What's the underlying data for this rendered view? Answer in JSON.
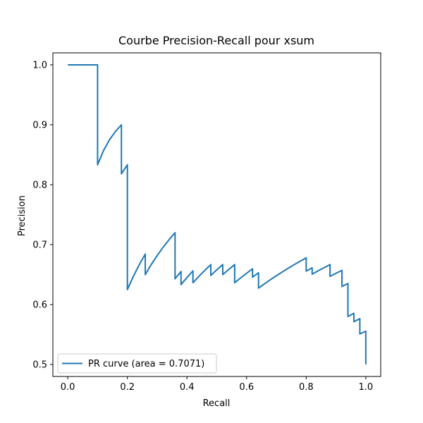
{
  "chart_data": {
    "type": "line",
    "title": "Courbe Precision-Recall pour xsum",
    "xlabel": "Recall",
    "ylabel": "Precision",
    "xlim": [
      -0.05,
      1.05
    ],
    "ylim": [
      0.48,
      1.02
    ],
    "xticks": [
      0.0,
      0.2,
      0.4,
      0.6,
      0.8,
      1.0
    ],
    "xtick_labels": [
      "0.0",
      "0.2",
      "0.4",
      "0.6",
      "0.8",
      "1.0"
    ],
    "yticks": [
      0.5,
      0.6,
      0.7,
      0.8,
      0.9,
      1.0
    ],
    "ytick_labels": [
      "0.5",
      "0.6",
      "0.7",
      "0.8",
      "0.9",
      "1.0"
    ],
    "grid": false,
    "legend_position": "lower-left",
    "colors": {
      "series": "#1f77b4"
    },
    "series": [
      {
        "name": "PR curve (area = 0.7071)",
        "x": [
          0.0,
          0.1,
          0.1,
          0.12,
          0.14,
          0.16,
          0.18,
          0.18,
          0.2,
          0.2,
          0.22,
          0.24,
          0.26,
          0.26,
          0.28,
          0.3,
          0.32,
          0.34,
          0.36,
          0.36,
          0.38,
          0.38,
          0.4,
          0.42,
          0.42,
          0.44,
          0.46,
          0.48,
          0.48,
          0.5,
          0.52,
          0.52,
          0.54,
          0.56,
          0.56,
          0.58,
          0.6,
          0.62,
          0.62,
          0.64,
          0.64,
          0.66,
          0.68,
          0.7,
          0.72,
          0.74,
          0.76,
          0.78,
          0.8,
          0.8,
          0.82,
          0.82,
          0.84,
          0.86,
          0.88,
          0.88,
          0.9,
          0.92,
          0.92,
          0.94,
          0.94,
          0.96,
          0.96,
          0.98,
          0.98,
          1.0,
          1.0
        ],
        "y": [
          1.0,
          1.0,
          0.8333,
          0.8571,
          0.875,
          0.8889,
          0.9,
          0.8182,
          0.8333,
          0.625,
          0.6471,
          0.6667,
          0.6842,
          0.65,
          0.6667,
          0.6818,
          0.6957,
          0.7083,
          0.72,
          0.6429,
          0.6552,
          0.6333,
          0.6452,
          0.6563,
          0.6364,
          0.6471,
          0.6571,
          0.6667,
          0.6486,
          0.6579,
          0.6667,
          0.65,
          0.6585,
          0.6667,
          0.6364,
          0.6444,
          0.6522,
          0.6596,
          0.6458,
          0.6531,
          0.6275,
          0.6346,
          0.6415,
          0.6481,
          0.6545,
          0.6607,
          0.6667,
          0.6724,
          0.678,
          0.6557,
          0.6613,
          0.6508,
          0.6563,
          0.6615,
          0.6667,
          0.6471,
          0.6522,
          0.6571,
          0.6301,
          0.6351,
          0.5802,
          0.5854,
          0.5714,
          0.5765,
          0.551,
          0.5556,
          0.5
        ]
      }
    ]
  }
}
